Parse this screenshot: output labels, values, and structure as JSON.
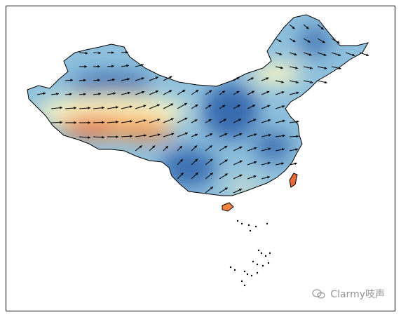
{
  "watermark": {
    "text": "Clarmy吱声",
    "icon": "wechat-icon"
  },
  "colors": {
    "low": "#2c5fa8",
    "mid_low": "#8fc0dd",
    "mid": "#fbf7c4",
    "mid_high": "#f6b86a",
    "high": "#e86a3a",
    "outline": "#000000",
    "arrow": "#000000"
  }
}
